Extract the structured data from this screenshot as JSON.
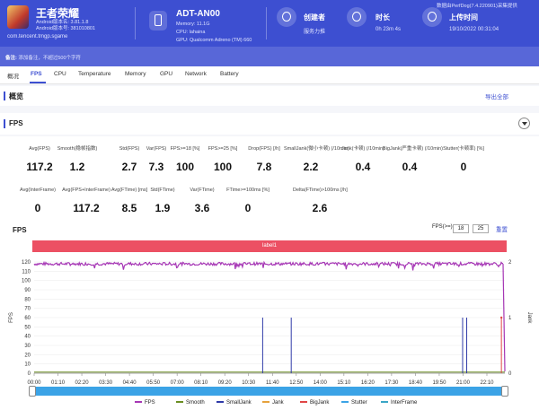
{
  "header": {
    "game_name": "王者荣耀",
    "android_version": "Android版本名: 3.81.1.8",
    "android_code": "Android版本号: 381010801",
    "package": "com.tencent.tmgp.sgame",
    "device_name": "ADT-AN00",
    "memory": "Memory: 11.1G",
    "cpu": "CPU: lahaina",
    "gpu": "GPU: Qualcomm Adreno (TM) 660",
    "creator_label": "创建者",
    "creator_value": "服务力推",
    "duration_label": "时长",
    "duration_value": "0h 23m 4s",
    "upload_label": "上传时间",
    "upload_value": "19/10/2022 00:31:04",
    "watermark": "数据由PerfDog(7.4.220901)采集提供"
  },
  "note": {
    "label": "备注:",
    "text": "添加备注，不超过500个字符"
  },
  "tabs": [
    "概况",
    "FPS",
    "CPU",
    "Temperature",
    "Memory",
    "GPU",
    "Network",
    "Battery"
  ],
  "overview": {
    "title": "概览",
    "export": "导出全部"
  },
  "fps_section": {
    "title": "FPS"
  },
  "stats_row1": [
    {
      "label": "Avg(FPS)",
      "value": "117.2"
    },
    {
      "label": "Smooth(稳帧指数)",
      "value": "1.2"
    },
    {
      "label": "Std(FPS)",
      "value": "2.7"
    },
    {
      "label": "Var(FPS)",
      "value": "7.3"
    },
    {
      "label": "FPS>=18 [%]",
      "value": "100"
    },
    {
      "label": "FPS>=25 [%]",
      "value": "100"
    },
    {
      "label": "Drop(FPS) [/h]",
      "value": "7.8"
    },
    {
      "label": "SmallJank(微小卡顿) (/10min)",
      "value": "2.2"
    },
    {
      "label": "Jank(卡顿) (/10min)",
      "value": "0.4"
    },
    {
      "label": "BigJank(严重卡顿) (/10min)",
      "value": "0.4"
    },
    {
      "label": "Stutter(卡顿率) [%]",
      "value": "0"
    }
  ],
  "stats_row2": [
    {
      "label": "Avg(InterFrame)",
      "value": "0"
    },
    {
      "label": "Avg(FPS+InterFrame)",
      "value": "117.2"
    },
    {
      "label": "Avg(FTime) [ms]",
      "value": "8.5"
    },
    {
      "label": "Std(FTime)",
      "value": "1.9"
    },
    {
      "label": "Var(FTime)",
      "value": "3.6"
    },
    {
      "label": "FTime>=100ms [%]",
      "value": "0"
    },
    {
      "label": "Delta(FTime)>100ms [/h]",
      "value": "2.6"
    }
  ],
  "fps_chart": {
    "title": "FPS",
    "fps_filter_label": "FPS(>=)",
    "fps_filter_a": "18",
    "fps_filter_b": "25",
    "reset_label": "重置",
    "band_label": "label1"
  },
  "chart_data": {
    "type": "line",
    "ylabel": "FPS",
    "y2label": "Jank",
    "ylim": [
      0,
      120
    ],
    "y2lim": [
      0,
      2
    ],
    "yticks": [
      "0",
      "10",
      "20",
      "30",
      "40",
      "50",
      "60",
      "70",
      "80",
      "90",
      "100",
      "110",
      "120"
    ],
    "y2ticks": [
      "0",
      "1",
      "2"
    ],
    "x": [
      "00:00",
      "01:10",
      "02:20",
      "03:30",
      "04:40",
      "05:50",
      "07:00",
      "08:10",
      "09:20",
      "10:30",
      "11:40",
      "12:50",
      "14:00",
      "15:10",
      "16:20",
      "17:30",
      "18:40",
      "19:50",
      "21:00",
      "22:10"
    ],
    "series": [
      {
        "name": "FPS",
        "color": "#a637b5",
        "values_summary": "~118 throughout with small dips",
        "baseline": 118
      },
      {
        "name": "Smooth",
        "color": "#6b8e23",
        "baseline": 1.2
      },
      {
        "name": "SmallJank",
        "color": "#2f3aa8",
        "spikes_at_minutes": [
          11.2,
          12.6,
          21.0,
          21.2
        ]
      },
      {
        "name": "Jank",
        "color": "#e6a23c"
      },
      {
        "name": "BigJank",
        "color": "#e04646",
        "spikes_at_minutes": [
          22.9
        ]
      },
      {
        "name": "Stutter",
        "color": "#3ba3e6"
      },
      {
        "name": "InterFrame",
        "color": "#3aa6c6"
      }
    ],
    "legend_position": "bottom",
    "grid": true
  }
}
